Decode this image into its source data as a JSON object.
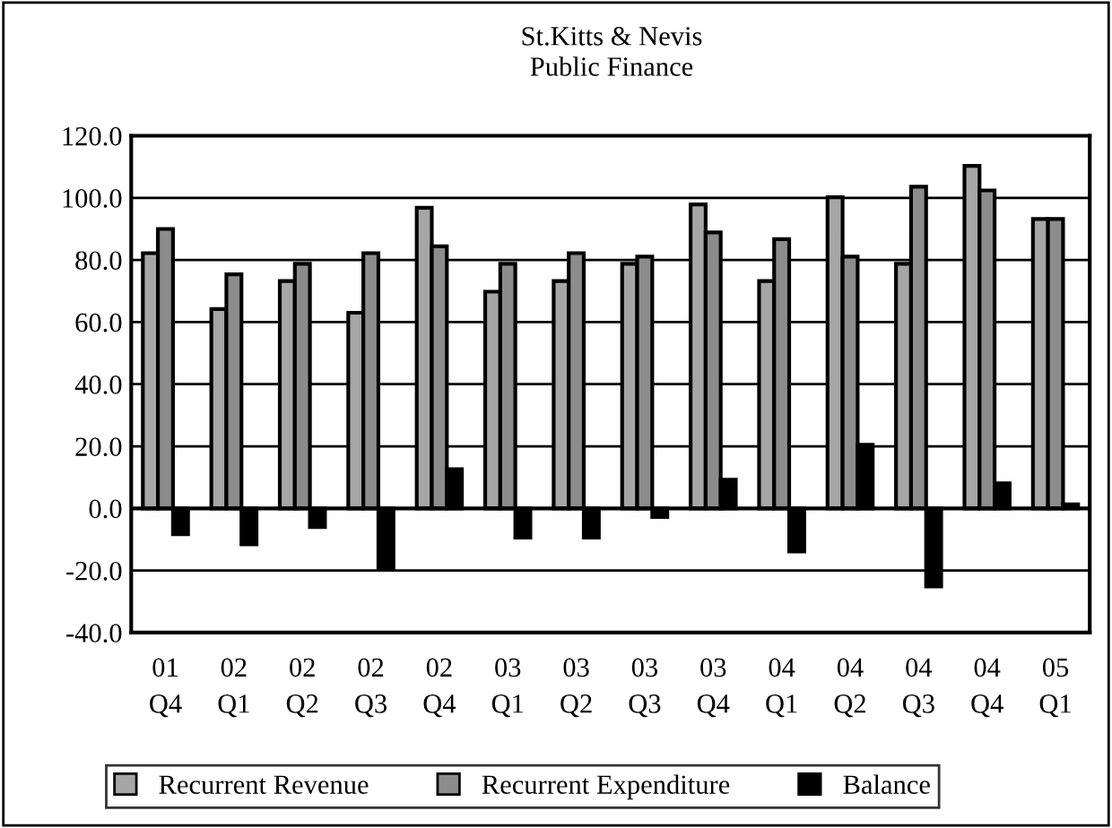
{
  "chart_data": {
    "type": "bar",
    "title": "St.Kitts & Nevis\nPublic Finance",
    "categories": [
      "01\nQ4",
      "02\nQ1",
      "02\nQ2",
      "02\nQ3",
      "02\nQ4",
      "03\nQ1",
      "03\nQ2",
      "03\nQ3",
      "03\nQ4",
      "04\nQ1",
      "04\nQ2",
      "04\nQ3",
      "04\nQ4",
      "05\nQ1"
    ],
    "series": [
      {
        "name": "Recurrent Revenue",
        "color": "#a6a6a6",
        "values": [
          82.2,
          64.2,
          73.2,
          63.0,
          96.8,
          69.8,
          73.2,
          78.8,
          97.9,
          73.2,
          100.2,
          78.8,
          110.3,
          93.2
        ]
      },
      {
        "name": "Recurrent Expenditure",
        "color": "#8c8c8c",
        "values": [
          90.0,
          75.4,
          78.8,
          82.2,
          84.4,
          78.8,
          82.2,
          81.1,
          88.9,
          86.7,
          81.1,
          103.6,
          102.4,
          93.2
        ]
      },
      {
        "name": "Balance",
        "color": "#000000",
        "values": [
          -8.3,
          -11.6,
          -6.0,
          -19.5,
          12.6,
          -9.4,
          -9.4,
          -2.8,
          9.2,
          -13.9,
          20.5,
          -25.1,
          8.1,
          1.3
        ]
      }
    ],
    "ylim": [
      -40,
      120
    ],
    "yticks": [
      {
        "value": -40,
        "label": "-40.0"
      },
      {
        "value": -20,
        "label": "-20.0"
      },
      {
        "value": 0,
        "label": "0.0"
      },
      {
        "value": 20,
        "label": "20.0"
      },
      {
        "value": 40,
        "label": "40.0"
      },
      {
        "value": 60,
        "label": "60.0"
      },
      {
        "value": 80,
        "label": "80.0"
      },
      {
        "value": 100,
        "label": "100.0"
      },
      {
        "value": 120,
        "label": "120.0"
      }
    ],
    "grid": "y",
    "legend": "bottom"
  }
}
